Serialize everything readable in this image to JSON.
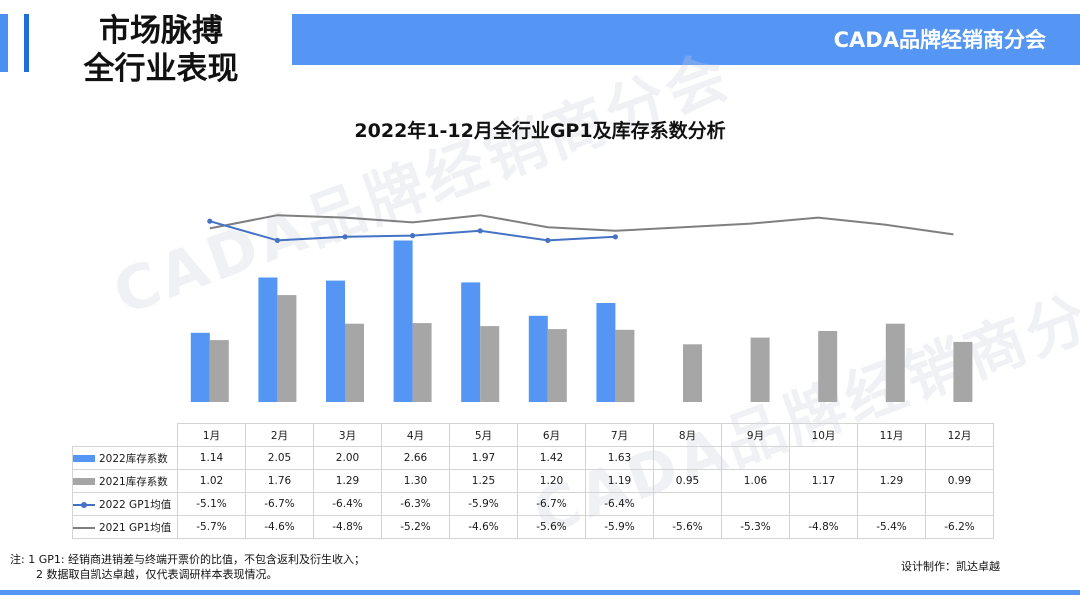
{
  "page": {
    "title_line1": "市场脉搏",
    "title_line2": "全行业表现",
    "header_text": "CADA品牌经销商分会",
    "watermark": "CADA品牌经销商分会",
    "footnote_line1": "注: 1 GP1: 经销商进销差与终端开票价的比值，不包含返利及衍生收入；",
    "footnote_line2": "2 数据取自凯达卓越，仅代表调研样本表现情况。",
    "credit": "设计制作：凯达卓越",
    "colors": {
      "accent": "#5596f4",
      "bar2022": "#5596f4",
      "bar2021": "#a6a6a6",
      "line2022": "#4472c4",
      "line2021": "#7f7f7f"
    }
  },
  "chart_data": {
    "type": "bar",
    "title": "2022年1-12月全行业GP1及库存系数分析",
    "categories": [
      "1月",
      "2月",
      "3月",
      "4月",
      "5月",
      "6月",
      "7月",
      "8月",
      "9月",
      "10月",
      "11月",
      "12月"
    ],
    "series": [
      {
        "name": "2022库存系数",
        "kind": "bar",
        "values": [
          1.14,
          2.05,
          2.0,
          2.66,
          1.97,
          1.42,
          1.63,
          null,
          null,
          null,
          null,
          null
        ],
        "labels": [
          "1.14",
          "2.05",
          "2.00",
          "2.66",
          "1.97",
          "1.42",
          "1.63",
          "",
          "",
          "",
          "",
          ""
        ]
      },
      {
        "name": "2021库存系数",
        "kind": "bar",
        "values": [
          1.02,
          1.76,
          1.29,
          1.3,
          1.25,
          1.2,
          1.19,
          0.95,
          1.06,
          1.17,
          1.29,
          0.99
        ],
        "labels": [
          "1.02",
          "1.76",
          "1.29",
          "1.30",
          "1.25",
          "1.20",
          "1.19",
          "0.95",
          "1.06",
          "1.17",
          "1.29",
          "0.99"
        ]
      },
      {
        "name": "2022 GP1均值",
        "kind": "line",
        "values": [
          -5.1,
          -6.7,
          -6.4,
          -6.3,
          -5.9,
          -6.7,
          -6.4,
          null,
          null,
          null,
          null,
          null
        ],
        "labels": [
          "-5.1%",
          "-6.7%",
          "-6.4%",
          "-6.3%",
          "-5.9%",
          "-6.7%",
          "-6.4%",
          "",
          "",
          "",
          "",
          ""
        ]
      },
      {
        "name": "2021 GP1均值",
        "kind": "line",
        "values": [
          -5.7,
          -4.6,
          -4.8,
          -5.2,
          -4.6,
          -5.6,
          -5.9,
          -5.6,
          -5.3,
          -4.8,
          -5.4,
          -6.2
        ],
        "labels": [
          "-5.7%",
          "-4.6%",
          "-4.8%",
          "-5.2%",
          "-4.6%",
          "-5.6%",
          "-5.9%",
          "-5.6%",
          "-5.3%",
          "-4.8%",
          "-5.4%",
          "-6.2%"
        ]
      }
    ],
    "bar_ylim": [
      0,
      2.8
    ],
    "line_ylim": [
      -20,
      0
    ],
    "grid": false,
    "legend": "table"
  }
}
